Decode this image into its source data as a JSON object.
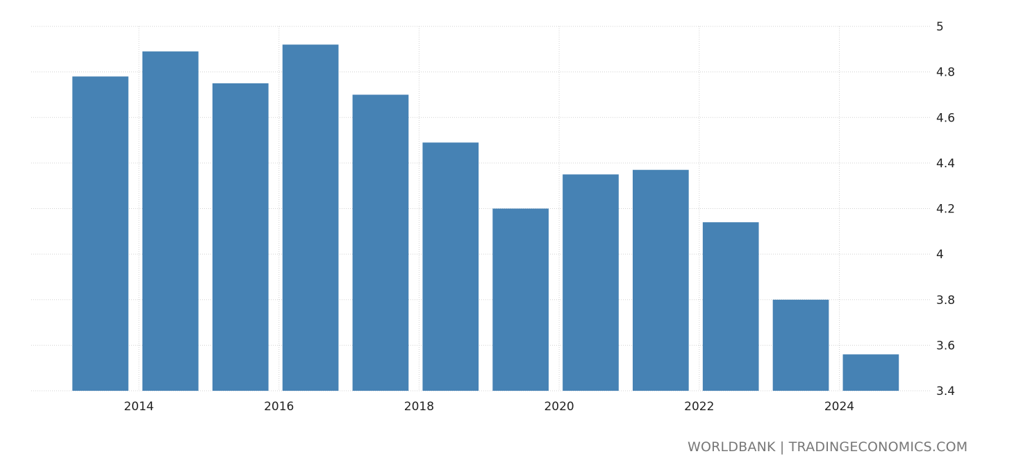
{
  "chart_data": {
    "type": "bar",
    "title": "",
    "xlabel": "",
    "ylabel": "",
    "categories": [
      "2013",
      "2014",
      "2015",
      "2016",
      "2017",
      "2018",
      "2019",
      "2020",
      "2021",
      "2022",
      "2023",
      "2024"
    ],
    "values": [
      4.78,
      4.89,
      4.75,
      4.92,
      4.7,
      4.49,
      4.2,
      4.35,
      4.37,
      4.14,
      3.8,
      3.56
    ],
    "ylim": [
      3.4,
      5
    ],
    "yticks": [
      "3.4",
      "3.6",
      "3.8",
      "4",
      "4.2",
      "4.4",
      "4.6",
      "4.8",
      "5"
    ],
    "xticks": [
      "2014",
      "2016",
      "2018",
      "2020",
      "2022",
      "2024"
    ],
    "y_axis_side": "right",
    "grid": true,
    "bar_color": "#4682b4"
  },
  "source": "WORLDBANK | TRADINGECONOMICS.COM"
}
